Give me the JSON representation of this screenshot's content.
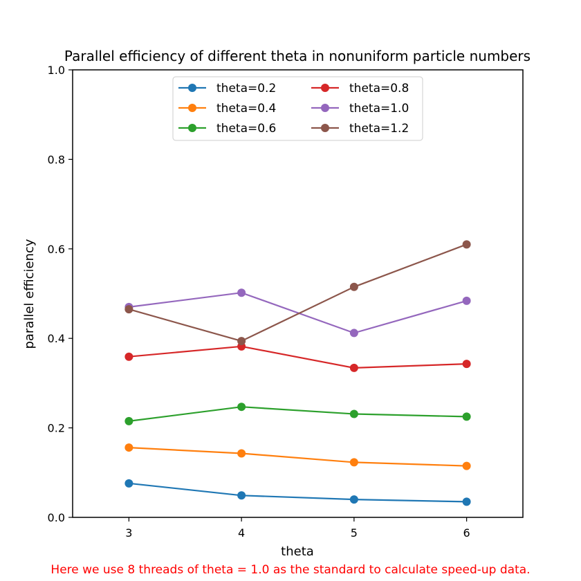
{
  "chart_data": {
    "type": "line",
    "title": "Parallel efficiency of different theta in nonuniform particle numbers",
    "xlabel": "theta",
    "ylabel": "parallel efficiency",
    "xlim": [
      2.5,
      6.5
    ],
    "ylim": [
      0.0,
      1.0
    ],
    "x": [
      3,
      4,
      5,
      6
    ],
    "xticks": [
      "3",
      "4",
      "5",
      "6"
    ],
    "yticks": [
      "0.0",
      "0.2",
      "0.4",
      "0.6",
      "0.8",
      "1.0"
    ],
    "grid": false,
    "legend_position": "top-center",
    "series": [
      {
        "name": "theta=0.2",
        "color": "#1f77b4",
        "values": [
          0.076,
          0.049,
          0.04,
          0.035
        ]
      },
      {
        "name": "theta=0.4",
        "color": "#ff7f0e",
        "values": [
          0.156,
          0.143,
          0.123,
          0.115
        ]
      },
      {
        "name": "theta=0.6",
        "color": "#2ca02c",
        "values": [
          0.215,
          0.247,
          0.231,
          0.225
        ]
      },
      {
        "name": "theta=0.8",
        "color": "#d62728",
        "values": [
          0.359,
          0.382,
          0.334,
          0.343
        ]
      },
      {
        "name": "theta=1.0",
        "color": "#9467bd",
        "values": [
          0.47,
          0.502,
          0.412,
          0.484
        ]
      },
      {
        "name": "theta=1.2",
        "color": "#8c564b",
        "values": [
          0.465,
          0.394,
          0.515,
          0.61
        ]
      }
    ],
    "footnote": "Here we use 8 threads of theta = 1.0 as the standard to calculate speed-up data.",
    "footnote_color": "#ff0000"
  }
}
